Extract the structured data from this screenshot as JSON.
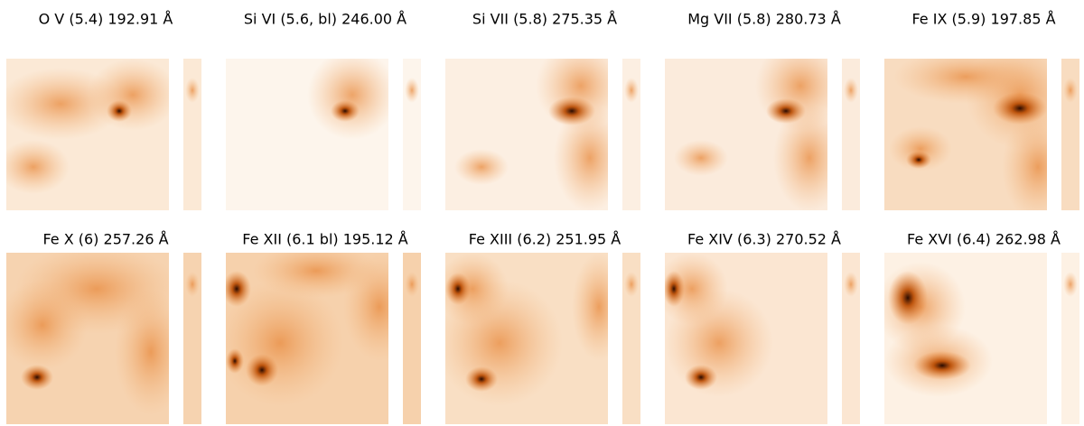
{
  "panels": [
    "O V (5.4) 192.91 Å",
    "Si VI (5.6, bl) 246.00 Å",
    "Si VII (5.8) 275.35 Å",
    "Mg VII (5.8) 280.73 Å",
    "Fe IX (5.9) 197.85 Å",
    "Fe X (6) 257.26 Å",
    "Fe XII (6.1 bl) 195.12 Å",
    "Fe XIII (6.2) 251.95 Å",
    "Fe XIV (6.3) 270.52 Å",
    "Fe XVI (6.4) 262.98 Å"
  ]
}
